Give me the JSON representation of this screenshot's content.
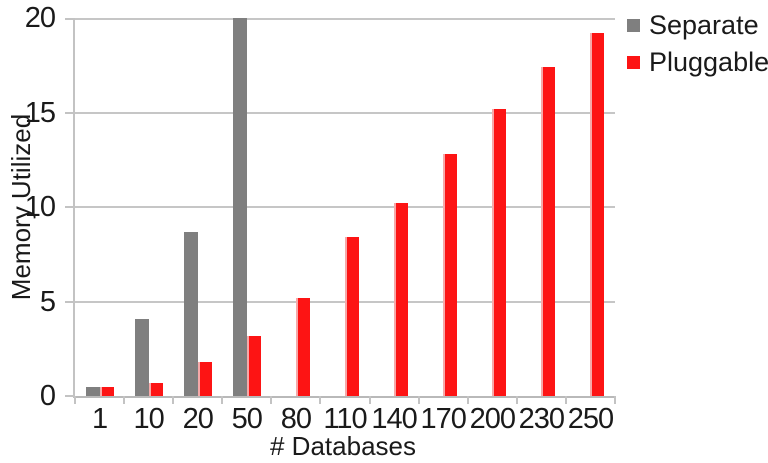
{
  "chart_data": {
    "type": "bar",
    "title": "",
    "categories": [
      "1",
      "10",
      "20",
      "50",
      "80",
      "110",
      "140",
      "170",
      "200",
      "230",
      "250"
    ],
    "series": [
      {
        "name": "Separate",
        "color": "#7f7f7f",
        "values": [
          0.5,
          4.1,
          8.7,
          20,
          null,
          null,
          null,
          null,
          null,
          null,
          null
        ]
      },
      {
        "name": "Pluggable",
        "color": "#fd1414",
        "values": [
          0.5,
          0.7,
          1.8,
          3.2,
          5.2,
          8.4,
          10.2,
          12.8,
          15.2,
          17.4,
          19.2
        ]
      }
    ],
    "xlabel": "# Databases",
    "ylabel": "Memory Utilized",
    "ylim": [
      0,
      20
    ],
    "yticks": [
      0,
      5,
      10,
      15,
      20
    ],
    "grid": true,
    "legend_position": "top-right",
    "colors": {
      "gridline": "#c6c6c6",
      "axis": "#c3c3c3",
      "text": "#1a1a1a",
      "separate_bar": "#7f7f7f",
      "pluggable_bar": "#fd1414",
      "pluggable_bar_edge": "#f6a9a9",
      "background": "#ffffff"
    }
  }
}
